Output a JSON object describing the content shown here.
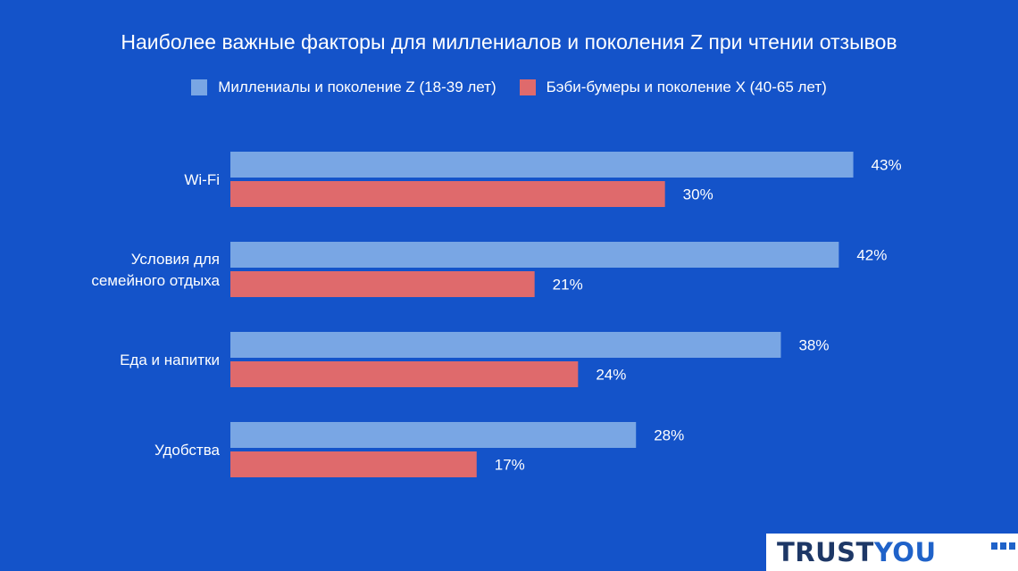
{
  "chart_data": {
    "type": "bar",
    "orientation": "horizontal",
    "title": "Наиболее важные факторы для миллениалов и поколения Z при чтении отзывов",
    "categories": [
      [
        "Wi-Fi"
      ],
      [
        "Условия для",
        "семейного отдыха"
      ],
      [
        "Еда и напитки"
      ],
      [
        "Удобства"
      ]
    ],
    "series": [
      {
        "name": "Миллениалы и поколение Z (18-39 лет)",
        "color": "#79a6e4",
        "values": [
          43,
          42,
          38,
          28
        ],
        "labels": [
          "43%",
          "42%",
          "38%",
          "28%"
        ]
      },
      {
        "name": "Бэби-бумеры и поколение X (40-65 лет)",
        "color": "#df6a6c",
        "values": [
          30,
          21,
          24,
          17
        ],
        "labels": [
          "30%",
          "21%",
          "24%",
          "17%"
        ]
      }
    ],
    "xlim": [
      0,
      45
    ],
    "grid": false,
    "legend_position": "top"
  },
  "logo": {
    "text_part1": "TRUST",
    "text_part2": "YOU"
  },
  "colors": {
    "background": "#1453c9",
    "text": "#ffffff",
    "logo_dark": "#1d3766",
    "logo_blue": "#1f62c9"
  }
}
